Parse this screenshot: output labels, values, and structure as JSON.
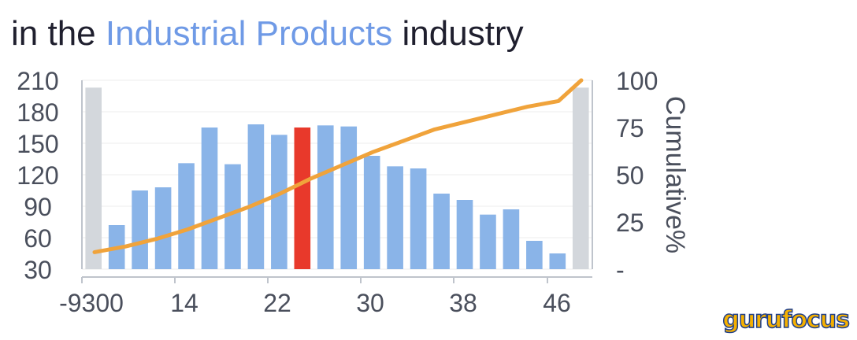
{
  "title": {
    "prefix": "in the",
    "highlight": "Industrial Products",
    "suffix": "industry"
  },
  "logo": "gurufocus",
  "chart_data": {
    "type": "bar",
    "x_tick_labels": [
      "-9300",
      "14",
      "22",
      "30",
      "38",
      "46"
    ],
    "y_left_ticks": [
      30,
      60,
      90,
      120,
      150,
      180,
      210
    ],
    "y_right_ticks": [
      "-",
      "25",
      "50",
      "75",
      "100"
    ],
    "y_right_label": "Cumulative%",
    "ylim_left": [
      30,
      210
    ],
    "ylim_right": [
      0,
      100
    ],
    "bars": [
      {
        "value": 203,
        "kind": "edge"
      },
      {
        "value": 72,
        "kind": "normal"
      },
      {
        "value": 105,
        "kind": "normal"
      },
      {
        "value": 108,
        "kind": "normal"
      },
      {
        "value": 131,
        "kind": "normal"
      },
      {
        "value": 165,
        "kind": "normal"
      },
      {
        "value": 130,
        "kind": "normal"
      },
      {
        "value": 168,
        "kind": "normal"
      },
      {
        "value": 158,
        "kind": "normal"
      },
      {
        "value": 165,
        "kind": "highlight"
      },
      {
        "value": 167,
        "kind": "normal"
      },
      {
        "value": 166,
        "kind": "normal"
      },
      {
        "value": 138,
        "kind": "normal"
      },
      {
        "value": 128,
        "kind": "normal"
      },
      {
        "value": 126,
        "kind": "normal"
      },
      {
        "value": 102,
        "kind": "normal"
      },
      {
        "value": 96,
        "kind": "normal"
      },
      {
        "value": 82,
        "kind": "normal"
      },
      {
        "value": 87,
        "kind": "normal"
      },
      {
        "value": 57,
        "kind": "normal"
      },
      {
        "value": 45,
        "kind": "normal"
      },
      {
        "value": 203,
        "kind": "edge"
      }
    ],
    "cumulative": [
      9,
      12,
      16,
      21,
      27,
      33,
      40,
      48,
      55,
      62,
      68,
      74,
      78,
      82,
      86,
      89,
      100
    ],
    "colors": {
      "bar": "#8ab4e8",
      "highlight": "#e8392b",
      "edge": "#d3d7dc",
      "line": "#f0a33b",
      "axis": "#bfc4cc",
      "grid": "#ececec"
    }
  }
}
